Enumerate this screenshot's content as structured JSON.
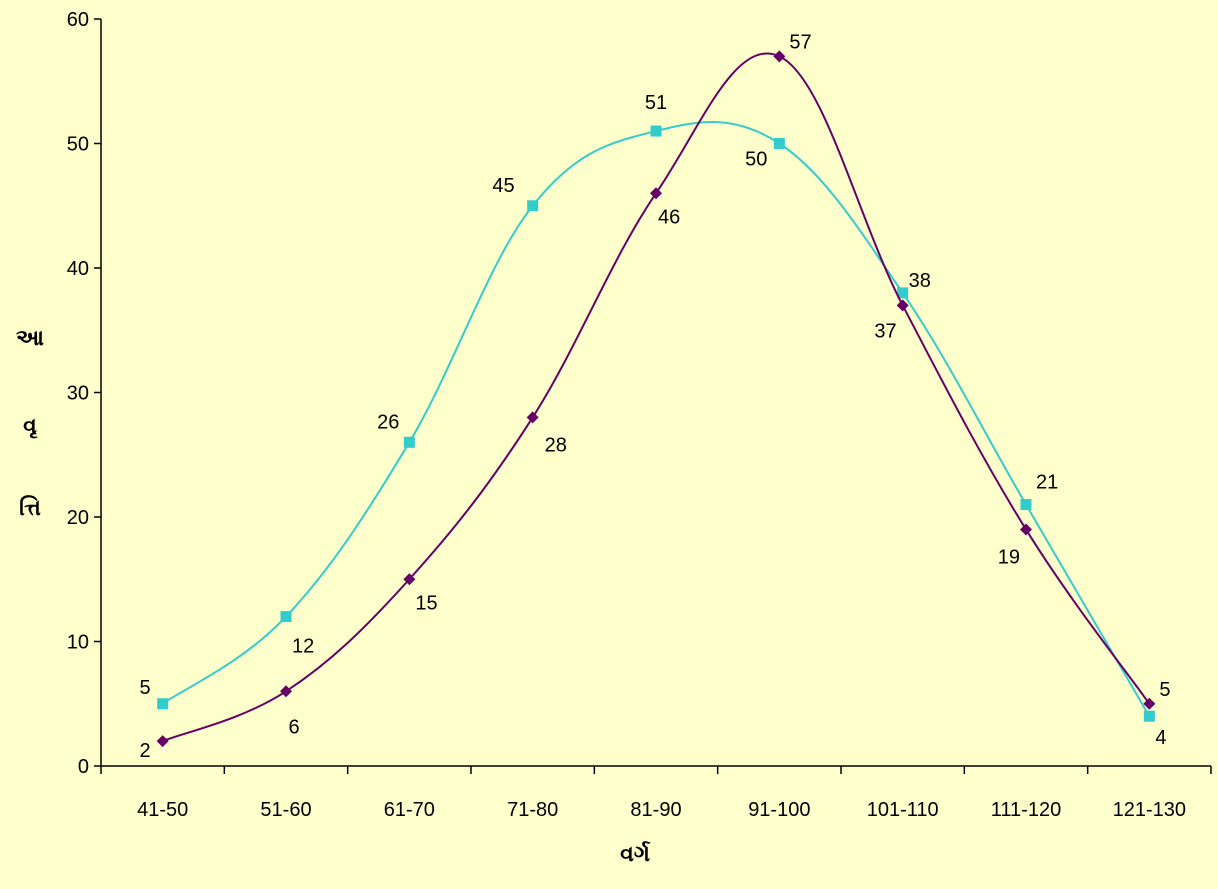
{
  "chart_data": {
    "type": "line",
    "xlabel": "વર્ગ",
    "ylabel_parts": [
      "આ",
      "વૃ",
      "ત્તિ"
    ],
    "categories": [
      "41-50",
      "51-60",
      "61-70",
      "71-80",
      "81-90",
      "91-100",
      "101-110",
      "111-120",
      "121-130"
    ],
    "ylim": [
      0,
      60
    ],
    "yticks": [
      "0",
      "10",
      "20",
      "30",
      "40",
      "50",
      "60"
    ],
    "grid": false,
    "legend": "none",
    "series": [
      {
        "color": "#33CCCC",
        "marker": "square",
        "values": [
          5,
          12,
          26,
          45,
          51,
          50,
          38,
          21,
          4
        ],
        "labels": [
          "5",
          "12",
          "26",
          "45",
          "51",
          "50",
          "38",
          "21",
          "4"
        ]
      },
      {
        "color": "#660066",
        "marker": "diamond",
        "values": [
          2,
          6,
          15,
          28,
          46,
          57,
          37,
          19,
          5
        ],
        "labels": [
          "2",
          "6",
          "15",
          "28",
          "46",
          "57",
          "37",
          "19",
          "5"
        ]
      }
    ]
  }
}
